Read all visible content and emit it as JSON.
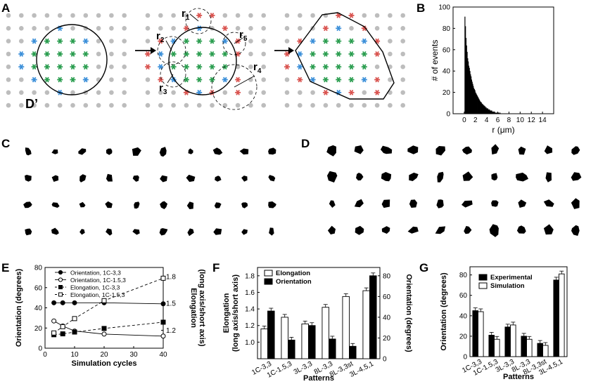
{
  "panels": {
    "A": "A",
    "B": "B",
    "C": "C",
    "D": "D",
    "E": "E",
    "F": "F",
    "G": "G"
  },
  "panelA": {
    "dprime": "D’",
    "r_labels": [
      {
        "base": "r",
        "sub": "1"
      },
      {
        "base": "r",
        "sub": "2"
      },
      {
        "base": "r",
        "sub": "3"
      },
      {
        "base": "r",
        "sub": "4"
      },
      {
        "base": "r",
        "sub": "5"
      }
    ],
    "colors": {
      "grid": "#bdbdbd",
      "green": "#2a9d4f",
      "blue": "#3b8fd9",
      "red": "#d9534f"
    }
  },
  "chart_data": [
    {
      "panel": "B",
      "type": "bar",
      "xlabel": "r (μm)",
      "ylabel": "# of events",
      "xlim": [
        -2,
        16
      ],
      "ylim": [
        0,
        100
      ],
      "xticks": [
        0,
        2,
        4,
        6,
        8,
        10,
        12,
        14
      ],
      "yticks": [
        0,
        20,
        40,
        60,
        80,
        100
      ],
      "bin_width": 0.1,
      "bins_start": 0.1,
      "values": [
        91,
        82,
        71,
        64,
        58,
        52,
        49,
        45,
        43,
        40,
        37,
        35,
        32,
        30,
        28,
        26,
        24,
        23,
        22,
        20,
        19,
        18,
        17,
        16,
        15,
        14,
        13,
        12,
        11,
        11,
        10,
        9,
        9,
        8,
        8,
        7,
        7,
        6,
        6,
        5,
        5,
        5,
        4,
        4,
        4,
        3,
        3,
        3,
        3,
        2,
        2,
        2,
        2,
        2,
        1,
        1,
        1,
        1,
        1,
        1,
        1,
        1,
        0,
        1
      ]
    },
    {
      "panel": "E",
      "type": "line",
      "xlabel": "Simulation cycles",
      "ylabel": "Orientation (degrees)",
      "y2label": [
        "Elongation",
        "(long axis/short axis)"
      ],
      "xlim": [
        0,
        40
      ],
      "ylim": [
        0,
        80
      ],
      "y2lim": [
        1.0,
        1.9
      ],
      "xticks": [
        0,
        10,
        20,
        30,
        40
      ],
      "yticks": [
        0,
        20,
        40,
        60,
        80
      ],
      "y2ticks": [
        1.2,
        1.5,
        1.8
      ],
      "x": [
        3,
        6,
        10,
        20,
        40
      ],
      "series": [
        {
          "name": "Orientation, 1C-3,3",
          "axis": "left",
          "marker": "filled-circle",
          "dash": false,
          "values": [
            45,
            45,
            45,
            45,
            44
          ]
        },
        {
          "name": "Orientation, 1C-1.5,3",
          "axis": "left",
          "marker": "open-circle",
          "dash": false,
          "values": [
            27,
            22,
            17,
            14,
            12
          ]
        },
        {
          "name": "Elongation, 1C-3,3",
          "axis": "right",
          "marker": "filled-square",
          "dash": true,
          "values": [
            1.15,
            1.16,
            1.18,
            1.22,
            1.29
          ]
        },
        {
          "name": "Elongation, 1C-1.5,3",
          "axis": "right",
          "marker": "open-square",
          "dash": true,
          "values": [
            1.17,
            1.24,
            1.33,
            1.53,
            1.78
          ]
        }
      ]
    },
    {
      "panel": "F",
      "type": "bar",
      "xlabel": "Patterns",
      "ylabel": [
        "Elongation",
        "(long axis/short axis)"
      ],
      "y2label": "Orientation (degrees)",
      "categories": [
        "1C-3,3",
        "1C-1.5,3",
        "3L-3,3",
        "8L-3,3",
        "8L-3,3st",
        "3L-4.5,1"
      ],
      "ylim": [
        0.8,
        1.9
      ],
      "y2lim": [
        0,
        88
      ],
      "yticks": [
        1.0,
        1.2,
        1.4,
        1.6,
        1.8
      ],
      "y2ticks": [
        0,
        20,
        40,
        60,
        80
      ],
      "series": [
        {
          "name": "Elongation",
          "fill": "#ffffff",
          "axis": "left",
          "values": [
            1.16,
            1.3,
            1.22,
            1.42,
            1.55,
            1.62
          ]
        },
        {
          "name": "Orientation",
          "fill": "#000000",
          "axis": "right",
          "values": [
            46,
            18,
            32,
            19,
            12,
            80
          ]
        }
      ]
    },
    {
      "panel": "G",
      "type": "bar",
      "xlabel": "Patterns",
      "ylabel": "Orientation (degrees)",
      "categories": [
        "1C-3,3",
        "1C-1.5,3",
        "3L-3,3",
        "8L-3,3",
        "8L-3,3st",
        "3L-4.5,1"
      ],
      "ylim": [
        0,
        88
      ],
      "yticks": [
        0,
        20,
        40,
        60,
        80
      ],
      "series": [
        {
          "name": "Experimental",
          "fill": "#000000",
          "values": [
            45,
            21,
            29,
            20,
            13,
            75
          ]
        },
        {
          "name": "Simulation",
          "fill": "#ffffff",
          "values": [
            44,
            17,
            31,
            17,
            11,
            81
          ]
        }
      ]
    }
  ]
}
